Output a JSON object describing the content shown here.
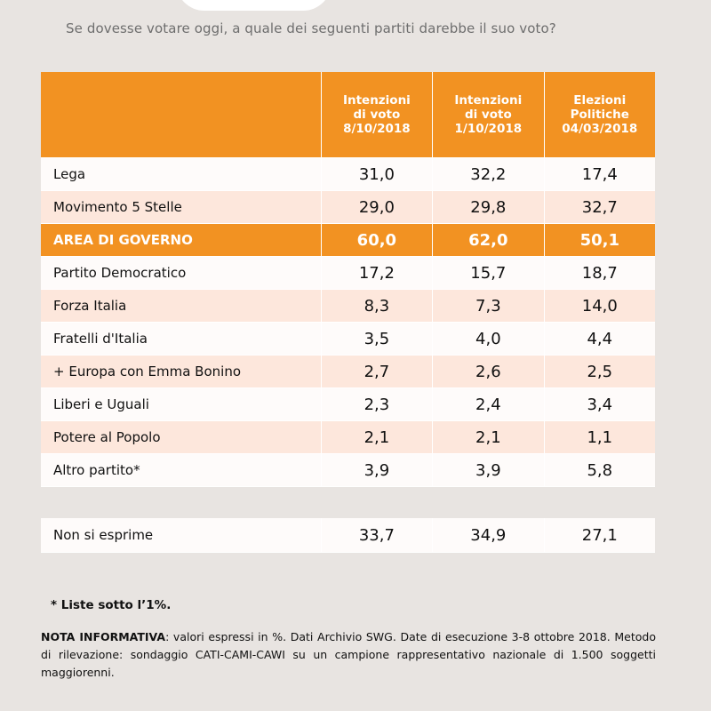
{
  "question": "Se dovesse votare oggi, a quale dei seguenti partiti darebbe il suo voto?",
  "headers": [
    "Intenzioni\ndi voto\n8/10/2018",
    "Intenzioni\ndi voto\n1/10/2018",
    "Elezioni\nPolitiche\n04/03/2018"
  ],
  "rows": [
    {
      "label": "Lega",
      "v1": "31,0",
      "v2": "32,2",
      "v3": "17,4",
      "style": "white"
    },
    {
      "label": "Movimento 5 Stelle",
      "v1": "29,0",
      "v2": "29,8",
      "v3": "32,7",
      "style": "pink"
    },
    {
      "label": "AREA DI GOVERNO",
      "v1": "60,0",
      "v2": "62,0",
      "v3": "50,1",
      "style": "orange"
    },
    {
      "label": "Partito Democratico",
      "v1": "17,2",
      "v2": "15,7",
      "v3": "18,7",
      "style": "white"
    },
    {
      "label": "Forza Italia",
      "v1": "8,3",
      "v2": "7,3",
      "v3": "14,0",
      "style": "pink"
    },
    {
      "label": "Fratelli d'Italia",
      "v1": "3,5",
      "v2": "4,0",
      "v3": "4,4",
      "style": "white"
    },
    {
      "label": "+ Europa con Emma Bonino",
      "v1": "2,7",
      "v2": "2,6",
      "v3": "2,5",
      "style": "pink"
    },
    {
      "label": "Liberi e Uguali",
      "v1": "2,3",
      "v2": "2,4",
      "v3": "3,4",
      "style": "white"
    },
    {
      "label": "Potere al Popolo",
      "v1": "2,1",
      "v2": "2,1",
      "v3": "1,1",
      "style": "pink"
    },
    {
      "label": "Altro partito*",
      "v1": "3,9",
      "v2": "3,9",
      "v3": "5,8",
      "style": "white"
    }
  ],
  "non_si_esprime": {
    "label": "Non si esprime",
    "v1": "33,7",
    "v2": "34,9",
    "v3": "27,1"
  },
  "footnote": "* Liste sotto l’1%.",
  "nota": {
    "label": "NOTA INFORMATIVA",
    "text": ": valori espressi in %. Dati Archivio SWG. Date di esecuzione 3-8 ottobre 2018. Metodo di rilevazione: sondaggio CATI-CAMI-CAWI su un campione rappresentativo nazionale di 1.500 soggetti maggiorenni."
  }
}
